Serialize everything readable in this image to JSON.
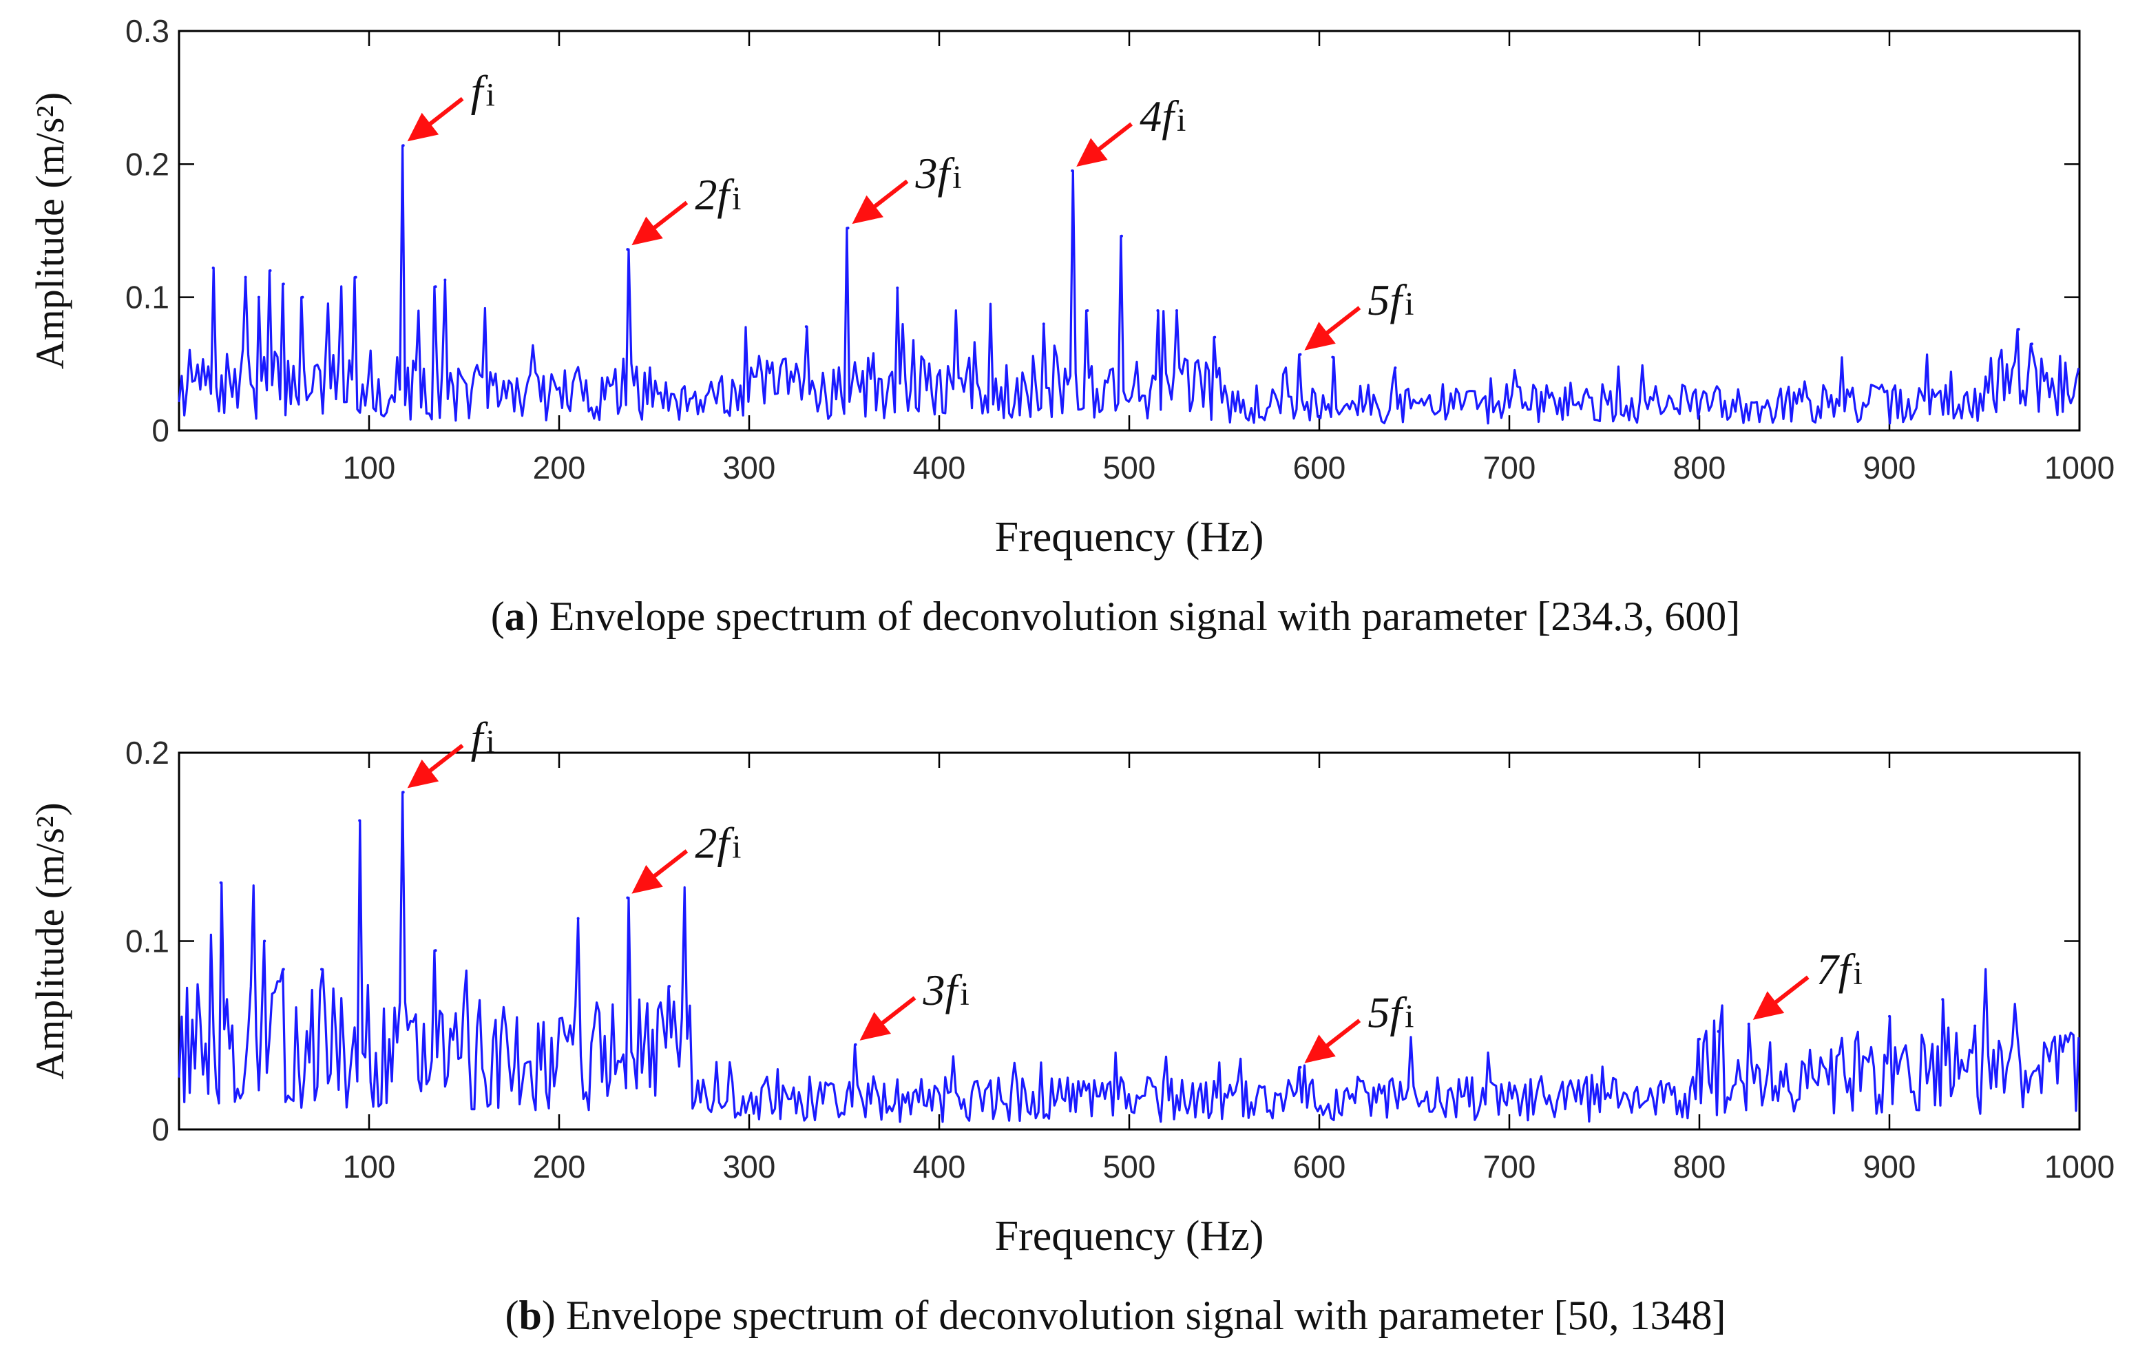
{
  "chart_data": [
    {
      "id": "a",
      "type": "line",
      "xlabel": "Frequency (Hz)",
      "ylabel": "Amplitude (m/s²)",
      "xlim": [
        0,
        1000
      ],
      "ylim": [
        0,
        0.3
      ],
      "xticks": [
        100,
        200,
        300,
        400,
        500,
        600,
        700,
        800,
        900,
        1000
      ],
      "yticks": [
        0,
        0.1,
        0.2,
        0.3
      ],
      "ytick_labels": [
        "0",
        "0.1",
        "0.2",
        "0.3"
      ],
      "caption_label": "a",
      "caption_text": "Envelope spectrum of deconvolution signal with parameter [234.3, 600]",
      "series_color": "#1a1aff",
      "noise": {
        "seed": 7,
        "bands": [
          [
            0,
            100,
            0.035
          ],
          [
            100,
            300,
            0.028
          ],
          [
            300,
            550,
            0.032
          ],
          [
            550,
            950,
            0.02
          ],
          [
            950,
            1000,
            0.035
          ]
        ]
      },
      "peaks": [
        {
          "x": 18,
          "y": 0.122
        },
        {
          "x": 35,
          "y": 0.115
        },
        {
          "x": 42,
          "y": 0.1
        },
        {
          "x": 48,
          "y": 0.12
        },
        {
          "x": 55,
          "y": 0.11
        },
        {
          "x": 65,
          "y": 0.1
        },
        {
          "x": 93,
          "y": 0.115
        },
        {
          "x": 118,
          "y": 0.214
        },
        {
          "x": 135,
          "y": 0.108
        },
        {
          "x": 140,
          "y": 0.113
        },
        {
          "x": 236,
          "y": 0.136
        },
        {
          "x": 330,
          "y": 0.078
        },
        {
          "x": 352,
          "y": 0.152
        },
        {
          "x": 378,
          "y": 0.107
        },
        {
          "x": 455,
          "y": 0.08
        },
        {
          "x": 470,
          "y": 0.195
        },
        {
          "x": 478,
          "y": 0.09
        },
        {
          "x": 496,
          "y": 0.146
        },
        {
          "x": 515,
          "y": 0.09
        },
        {
          "x": 525,
          "y": 0.09
        },
        {
          "x": 545,
          "y": 0.07
        },
        {
          "x": 590,
          "y": 0.057
        },
        {
          "x": 607,
          "y": 0.055
        },
        {
          "x": 640,
          "y": 0.047
        },
        {
          "x": 968,
          "y": 0.076
        },
        {
          "x": 975,
          "y": 0.065
        }
      ],
      "annotations": [
        {
          "label": "f",
          "sub": "i",
          "prefix": "",
          "x": 118,
          "y": 0.214
        },
        {
          "label": "f",
          "sub": "i",
          "prefix": "2",
          "x": 236,
          "y": 0.136
        },
        {
          "label": "f",
          "sub": "i",
          "prefix": "3",
          "x": 352,
          "y": 0.152
        },
        {
          "label": "f",
          "sub": "i",
          "prefix": "4",
          "x": 470,
          "y": 0.195
        },
        {
          "label": "f",
          "sub": "i",
          "prefix": "5",
          "x": 590,
          "y": 0.057
        }
      ]
    },
    {
      "id": "b",
      "type": "line",
      "xlabel": "Frequency (Hz)",
      "ylabel": "Amplitude (m/s²)",
      "xlim": [
        0,
        1000
      ],
      "ylim": [
        0,
        0.2
      ],
      "xticks": [
        100,
        200,
        300,
        400,
        500,
        600,
        700,
        800,
        900,
        1000
      ],
      "yticks": [
        0,
        0.1,
        0.2
      ],
      "ytick_labels": [
        "0",
        "0.1",
        "0.2"
      ],
      "caption_label": "b",
      "caption_text": "Envelope spectrum of deconvolution signal with parameter [50, 1348]",
      "series_color": "#1a1aff",
      "noise": {
        "seed": 13,
        "bands": [
          [
            0,
            100,
            0.045
          ],
          [
            100,
            270,
            0.04
          ],
          [
            270,
            800,
            0.016
          ],
          [
            800,
            1000,
            0.03
          ]
        ]
      },
      "peaks": [
        {
          "x": 22,
          "y": 0.131
        },
        {
          "x": 45,
          "y": 0.1
        },
        {
          "x": 55,
          "y": 0.085
        },
        {
          "x": 75,
          "y": 0.085
        },
        {
          "x": 95,
          "y": 0.164
        },
        {
          "x": 118,
          "y": 0.179
        },
        {
          "x": 135,
          "y": 0.095
        },
        {
          "x": 210,
          "y": 0.112
        },
        {
          "x": 236,
          "y": 0.123
        },
        {
          "x": 258,
          "y": 0.076
        },
        {
          "x": 356,
          "y": 0.045
        },
        {
          "x": 590,
          "y": 0.033
        },
        {
          "x": 800,
          "y": 0.048
        },
        {
          "x": 810,
          "y": 0.052
        },
        {
          "x": 826,
          "y": 0.056
        },
        {
          "x": 900,
          "y": 0.06
        },
        {
          "x": 928,
          "y": 0.069
        },
        {
          "x": 945,
          "y": 0.055
        }
      ],
      "annotations": [
        {
          "label": "f",
          "sub": "i",
          "prefix": "",
          "x": 118,
          "y": 0.179
        },
        {
          "label": "f",
          "sub": "i",
          "prefix": "2",
          "x": 236,
          "y": 0.123
        },
        {
          "label": "f",
          "sub": "i",
          "prefix": "3",
          "x": 356,
          "y": 0.045
        },
        {
          "label": "f",
          "sub": "i",
          "prefix": "5",
          "x": 590,
          "y": 0.033
        },
        {
          "label": "f",
          "sub": "i",
          "prefix": "7",
          "x": 826,
          "y": 0.056
        }
      ]
    }
  ]
}
